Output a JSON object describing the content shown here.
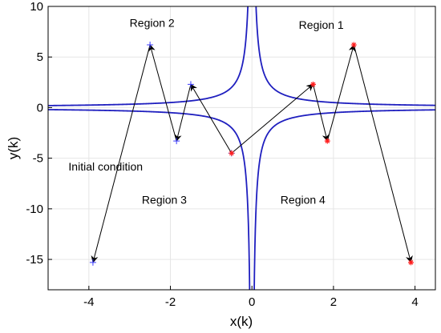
{
  "chart_data": {
    "type": "line",
    "xlabel": "x(k)",
    "ylabel": "y(k)",
    "xlim": [
      -5,
      4.5
    ],
    "ylim": [
      -18,
      10
    ],
    "xticks": [
      "-4",
      "-2",
      "0",
      "2",
      "4"
    ],
    "yticks": [
      "10",
      "5",
      "0",
      "-5",
      "-10",
      "-15"
    ],
    "grid": true,
    "colors": {
      "curve": "#1f1fbf",
      "blue_marker": "#3b3bff",
      "red_marker": "#ff2020",
      "arrow": "#000000",
      "grid": "#e6e6e6",
      "frame": "#000000"
    },
    "curves": [
      {
        "equation": "y = 1/x"
      },
      {
        "equation": "y = -1/x"
      }
    ],
    "series": [
      {
        "marker": "+",
        "color": "#3b3bff",
        "points": [
          [
            -0.5,
            -4.5
          ],
          [
            -1.5,
            2.3
          ],
          [
            -1.85,
            -3.3
          ],
          [
            -2.5,
            6.2
          ],
          [
            -3.9,
            -15.3
          ]
        ]
      },
      {
        "marker": "*",
        "color": "#ff2020",
        "points": [
          [
            -0.5,
            -4.5
          ],
          [
            1.5,
            2.3
          ],
          [
            1.85,
            -3.3
          ],
          [
            2.5,
            6.2
          ],
          [
            3.9,
            -15.3
          ]
        ]
      }
    ],
    "annotations": [
      {
        "text": "Region 1",
        "x": 1.15,
        "y": 7.8
      },
      {
        "text": "Region 2",
        "x": -3.0,
        "y": 8.0
      },
      {
        "text": "Region 3",
        "x": -2.7,
        "y": -9.5
      },
      {
        "text": "Region 4",
        "x": 0.7,
        "y": -9.5
      },
      {
        "text": "Initial condition",
        "x": -4.5,
        "y": -6.2
      }
    ]
  }
}
